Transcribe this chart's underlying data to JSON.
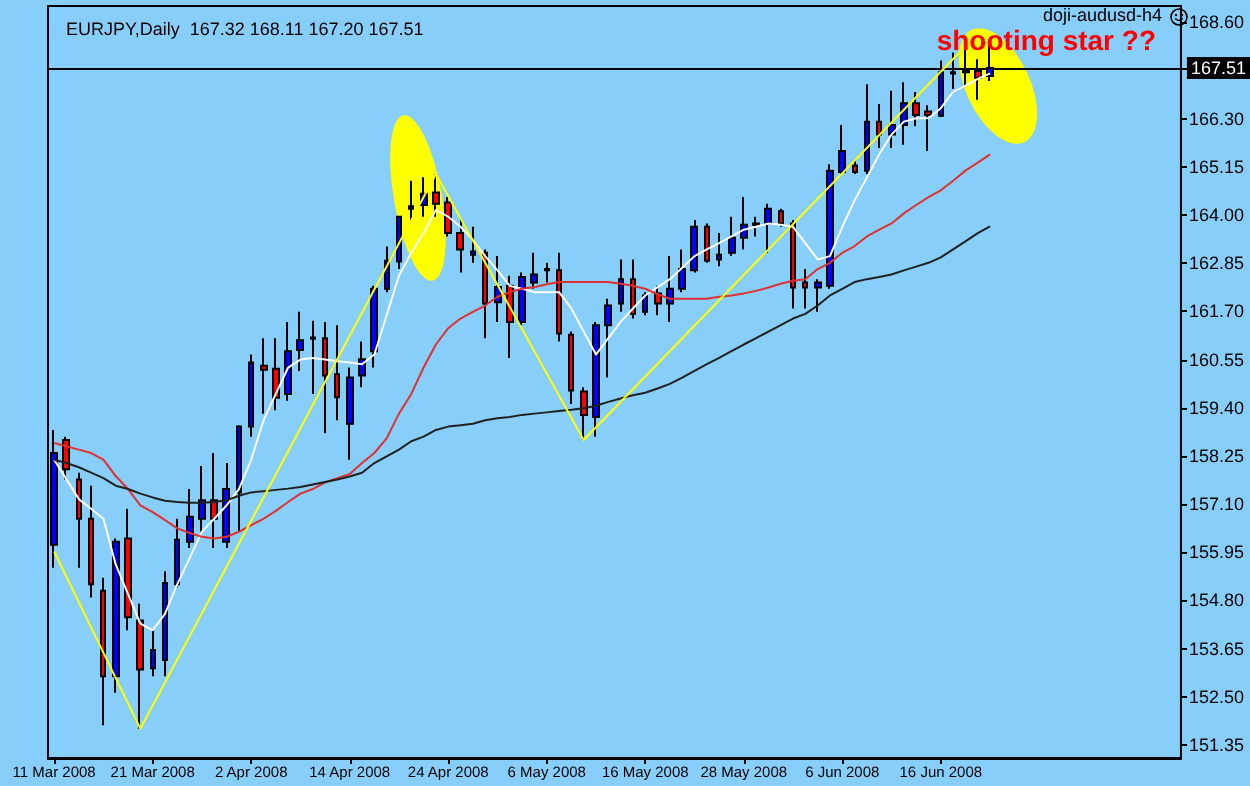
{
  "chart_data": {
    "type": "candlestick",
    "title": "EURJPY,Daily  167.32 168.11 167.20 167.51",
    "categories": [
      "11 Mar 2008",
      null,
      null,
      null,
      null,
      null,
      null,
      null,
      "21 Mar 2008",
      null,
      null,
      null,
      null,
      null,
      null,
      null,
      "2 Apr 2008",
      null,
      null,
      null,
      null,
      null,
      null,
      null,
      "14 Apr 2008",
      null,
      null,
      null,
      null,
      null,
      null,
      null,
      "24 Apr 2008",
      null,
      null,
      null,
      null,
      null,
      null,
      null,
      "6 May 2008",
      null,
      null,
      null,
      null,
      null,
      null,
      null,
      "16 May 2008",
      null,
      null,
      null,
      null,
      null,
      null,
      null,
      "28 May 2008",
      null,
      null,
      null,
      null,
      null,
      null,
      null,
      "6 Jun 2008",
      null,
      null,
      null,
      null,
      null,
      null,
      null,
      "16 Jun 2008",
      null,
      null,
      null,
      null
    ],
    "series": [
      {
        "type": "candlestick",
        "ohlc": [
          [
            156.13,
            158.87,
            155.58,
            158.32
          ],
          [
            158.63,
            158.71,
            157.69,
            157.93
          ],
          [
            157.69,
            157.85,
            155.58,
            156.75
          ],
          [
            156.75,
            157.54,
            154.87,
            155.19
          ],
          [
            155.03,
            155.34,
            151.82,
            152.99
          ],
          [
            152.99,
            156.28,
            152.6,
            156.2
          ],
          [
            156.28,
            156.99,
            154.09,
            154.4
          ],
          [
            154.32,
            154.72,
            151.74,
            153.15
          ],
          [
            153.18,
            154.09,
            152.99,
            153.62
          ],
          [
            153.38,
            155.5,
            152.99,
            155.22
          ],
          [
            155.19,
            156.75,
            155.11,
            156.25
          ],
          [
            156.2,
            157.46,
            156.05,
            156.8
          ],
          [
            156.75,
            158.01,
            156.44,
            157.19
          ],
          [
            157.19,
            158.32,
            156.05,
            156.75
          ],
          [
            156.2,
            158.08,
            156.05,
            157.46
          ],
          [
            157.38,
            158.98,
            156.44,
            158.95
          ],
          [
            158.95,
            160.67,
            158.71,
            160.48
          ],
          [
            160.4,
            161.06,
            159.26,
            160.31
          ],
          [
            160.33,
            161.06,
            159.34,
            159.64
          ],
          [
            159.73,
            161.45,
            159.57,
            160.75
          ],
          [
            160.78,
            161.69,
            160.28,
            161.01
          ],
          [
            161.05,
            161.48,
            159.73,
            161.08
          ],
          [
            161.06,
            161.45,
            158.79,
            160.17
          ],
          [
            160.2,
            161.37,
            159.1,
            159.65
          ],
          [
            159.02,
            160.36,
            158.16,
            160.12
          ],
          [
            160.17,
            160.98,
            159.89,
            160.56
          ],
          [
            160.75,
            162.31,
            160.36,
            162.24
          ],
          [
            162.24,
            163.25,
            162.16,
            162.91
          ],
          [
            162.89,
            163.96,
            162.71,
            163.96
          ],
          [
            164.15,
            164.82,
            163.88,
            164.21
          ],
          [
            164.24,
            164.9,
            163.96,
            164.51
          ],
          [
            164.54,
            164.98,
            163.96,
            164.27
          ],
          [
            164.3,
            164.43,
            163.49,
            163.57
          ],
          [
            163.57,
            163.88,
            162.63,
            163.18
          ],
          [
            163.05,
            163.72,
            162.86,
            163.13
          ],
          [
            163.1,
            163.18,
            161.06,
            161.89
          ],
          [
            161.92,
            163.02,
            161.45,
            162.28
          ],
          [
            162.31,
            162.55,
            160.59,
            161.45
          ],
          [
            161.45,
            162.63,
            161.37,
            162.52
          ],
          [
            162.39,
            163.1,
            162.24,
            162.58
          ],
          [
            162.68,
            162.86,
            162.39,
            162.71
          ],
          [
            162.68,
            163.1,
            160.98,
            161.17
          ],
          [
            161.14,
            161.22,
            159.49,
            159.81
          ],
          [
            159.79,
            159.89,
            158.63,
            159.23
          ],
          [
            159.18,
            161.45,
            158.71,
            161.37
          ],
          [
            161.37,
            162.0,
            160.12,
            161.84
          ],
          [
            161.89,
            162.94,
            161.69,
            162.47
          ],
          [
            162.47,
            162.94,
            161.53,
            161.64
          ],
          [
            161.69,
            162.16,
            161.61,
            162.08
          ],
          [
            162.13,
            162.31,
            161.61,
            161.89
          ],
          [
            161.89,
            163.02,
            161.45,
            162.24
          ],
          [
            162.24,
            163.18,
            162.16,
            162.71
          ],
          [
            162.68,
            163.88,
            162.63,
            163.72
          ],
          [
            163.72,
            163.8,
            162.86,
            162.91
          ],
          [
            162.94,
            163.57,
            162.78,
            163.05
          ],
          [
            163.1,
            163.96,
            163.02,
            163.46
          ],
          [
            163.46,
            164.43,
            163.18,
            163.77
          ],
          [
            163.77,
            163.96,
            163.49,
            163.8
          ],
          [
            163.8,
            164.27,
            163.1,
            164.15
          ],
          [
            164.09,
            164.15,
            163.72,
            163.8
          ],
          [
            163.8,
            163.88,
            161.77,
            162.27
          ],
          [
            162.39,
            162.71,
            161.77,
            162.27
          ],
          [
            162.27,
            162.47,
            161.69,
            162.39
          ],
          [
            162.31,
            165.21,
            162.24,
            165.06
          ],
          [
            165.03,
            166.15,
            164.98,
            165.53
          ],
          [
            165.18,
            165.29,
            164.98,
            165.03
          ],
          [
            165.06,
            167.12,
            164.98,
            166.23
          ],
          [
            166.23,
            166.65,
            165.6,
            165.92
          ],
          [
            165.92,
            166.97,
            165.6,
            166.15
          ],
          [
            166.15,
            167.17,
            165.68,
            166.67
          ],
          [
            166.67,
            166.94,
            166.12,
            166.39
          ],
          [
            166.47,
            166.62,
            165.53,
            166.39
          ],
          [
            166.37,
            167.69,
            166.34,
            167.41
          ],
          [
            167.38,
            167.88,
            167.01,
            167.41
          ],
          [
            167.41,
            168.03,
            167.09,
            167.44
          ],
          [
            167.44,
            167.72,
            166.75,
            167.28
          ],
          [
            167.32,
            168.11,
            167.2,
            167.51
          ]
        ],
        "colors": [
          "#0000ff",
          "#ff0000",
          "#ff0000",
          "#ff0000",
          "#ff0000",
          "#0000ff",
          "#ff0000",
          "#ff0000",
          "#0000ff",
          "#0000ff",
          "#0000ff",
          "#0000ff",
          "#0000ff",
          "#ff0000",
          "#0000ff",
          "#0000ff",
          "#0000ff",
          "#ff0000",
          "#ff0000",
          "#0000ff",
          "#0000ff",
          "#0000ff",
          "#ff0000",
          "#ff0000",
          "#0000ff",
          "#0000ff",
          "#0000ff",
          "#0000ff",
          "#0000ff",
          "#0000ff",
          "#0000ff",
          "#ff0000",
          "#ff0000",
          "#ff0000",
          "#0000ff",
          "#ff0000",
          "#0000ff",
          "#ff0000",
          "#0000ff",
          "#0000ff",
          "#0000ff",
          "#ff0000",
          "#ff0000",
          "#ff0000",
          "#0000ff",
          "#0000ff",
          "#0000ff",
          "#ff0000",
          "#0000ff",
          "#ff0000",
          "#0000ff",
          "#0000ff",
          "#0000ff",
          "#ff0000",
          "#0000ff",
          "#0000ff",
          "#0000ff",
          "#0000ff",
          "#0000ff",
          "#ff0000",
          "#ff0000",
          "#ff0000",
          "#0000ff",
          "#0000ff",
          "#0000ff",
          "#ff0000",
          "#0000ff",
          "#ff0000",
          "#0000ff",
          "#0000ff",
          "#ff0000",
          "#ff0000",
          "#0000ff",
          "#0000ff",
          "#0000ff",
          "#ff0000",
          "#0000ff"
        ]
      },
      {
        "type": "line",
        "color": "#ffffff",
        "values": [
          158.16,
          157.69,
          157.22,
          156.99,
          156.75,
          155.66,
          154.95,
          154.25,
          154.09,
          154.48,
          155.19,
          155.81,
          156.44,
          156.75,
          157.07,
          157.46,
          158.16,
          159.1,
          159.73,
          160.36,
          160.55,
          160.59,
          160.55,
          160.51,
          160.48,
          160.44,
          160.67,
          161.61,
          162.55,
          163.1,
          163.57,
          164.12,
          163.96,
          163.72,
          163.41,
          163.02,
          162.68,
          162.31,
          162.24,
          162.16,
          162.16,
          162.16,
          161.77,
          161.22,
          160.67,
          161.06,
          161.45,
          161.77,
          162.08,
          162.28,
          162.47,
          162.74,
          163.02,
          163.18,
          163.33,
          163.49,
          163.65,
          163.72,
          163.8,
          163.77,
          163.72,
          163.33,
          162.94,
          163.02,
          163.72,
          164.35,
          164.9,
          165.45,
          165.92,
          166.23,
          166.31,
          166.31,
          166.55,
          166.94,
          167.09,
          167.25,
          167.38
        ]
      },
      {
        "type": "line",
        "color": "#e03030",
        "values": [
          158.56,
          158.48,
          158.4,
          158.32,
          158.16,
          157.77,
          157.46,
          157.07,
          156.91,
          156.72,
          156.52,
          156.41,
          156.32,
          156.28,
          156.32,
          156.44,
          156.6,
          156.75,
          156.94,
          157.15,
          157.35,
          157.46,
          157.62,
          157.72,
          157.82,
          158.08,
          158.32,
          158.67,
          159.26,
          159.73,
          160.36,
          160.91,
          161.3,
          161.53,
          161.69,
          161.84,
          162.05,
          162.16,
          162.24,
          162.28,
          162.35,
          162.4,
          162.4,
          162.4,
          162.4,
          162.4,
          162.36,
          162.31,
          162.24,
          162.11,
          162.0,
          162.0,
          162.0,
          162.0,
          162.05,
          162.08,
          162.13,
          162.19,
          162.27,
          162.36,
          162.43,
          162.47,
          162.71,
          162.86,
          163.1,
          163.26,
          163.49,
          163.65,
          163.8,
          164.04,
          164.24,
          164.43,
          164.59,
          164.82,
          165.06,
          165.25,
          165.45
        ]
      },
      {
        "type": "line",
        "color": "#202020",
        "values": [
          158.16,
          158.08,
          157.98,
          157.85,
          157.72,
          157.54,
          157.46,
          157.35,
          157.26,
          157.18,
          157.15,
          157.13,
          157.13,
          157.15,
          157.19,
          157.3,
          157.38,
          157.41,
          157.44,
          157.47,
          157.51,
          157.57,
          157.63,
          157.69,
          157.76,
          157.85,
          158.08,
          158.24,
          158.4,
          158.6,
          158.71,
          158.87,
          158.95,
          158.98,
          159.02,
          159.1,
          159.15,
          159.18,
          159.23,
          159.26,
          159.29,
          159.32,
          159.35,
          159.39,
          159.45,
          159.54,
          159.62,
          159.7,
          159.76,
          159.86,
          159.97,
          160.12,
          160.28,
          160.44,
          160.59,
          160.75,
          160.91,
          161.06,
          161.22,
          161.37,
          161.53,
          161.64,
          161.84,
          162.08,
          162.24,
          162.4,
          162.47,
          162.52,
          162.58,
          162.68,
          162.77,
          162.86,
          162.99,
          163.18,
          163.37,
          163.57,
          163.73
        ]
      },
      {
        "type": "line",
        "color": "#ffff00",
        "values": [
          155.97,
          null,
          null,
          null,
          null,
          null,
          null,
          151.74,
          null,
          null,
          null,
          null,
          null,
          null,
          null,
          null,
          null,
          null,
          null,
          null,
          null,
          null,
          null,
          null,
          null,
          null,
          null,
          null,
          null,
          null,
          null,
          164.98,
          null,
          null,
          null,
          null,
          null,
          null,
          null,
          null,
          null,
          null,
          null,
          158.63,
          null,
          null,
          null,
          null,
          null,
          null,
          null,
          null,
          null,
          null,
          null,
          null,
          null,
          null,
          null,
          null,
          null,
          null,
          null,
          null,
          null,
          null,
          null,
          null,
          null,
          null,
          null,
          null,
          null,
          null,
          168.03,
          null,
          null
        ]
      }
    ],
    "ylim": [
      151.04,
      168.99
    ],
    "yticks": [
      {
        "value": 151.35,
        "label": "151.35"
      },
      {
        "value": 152.5,
        "label": "152.50"
      },
      {
        "value": 153.65,
        "label": "153.65"
      },
      {
        "value": 154.8,
        "label": "154.80"
      },
      {
        "value": 155.95,
        "label": "155.95"
      },
      {
        "value": 157.1,
        "label": "157.10"
      },
      {
        "value": 158.25,
        "label": "158.25"
      },
      {
        "value": 159.4,
        "label": "159.40"
      },
      {
        "value": 160.55,
        "label": "160.55"
      },
      {
        "value": 161.7,
        "label": "161.70"
      },
      {
        "value": 162.85,
        "label": "162.85"
      },
      {
        "value": 164.0,
        "label": "164.00"
      },
      {
        "value": 165.15,
        "label": "165.15"
      },
      {
        "value": 166.3,
        "label": "166.30"
      },
      {
        "value": 167.51,
        "label": null
      },
      {
        "value": 168.6,
        "label": "168.60"
      }
    ],
    "ref_lines": [
      {
        "axis": "y",
        "value": 167.51,
        "label": "167.51",
        "color": "#000000"
      }
    ],
    "annotations": [
      "shooting star ??",
      "doji-audusd-h4"
    ],
    "grid": false
  }
}
